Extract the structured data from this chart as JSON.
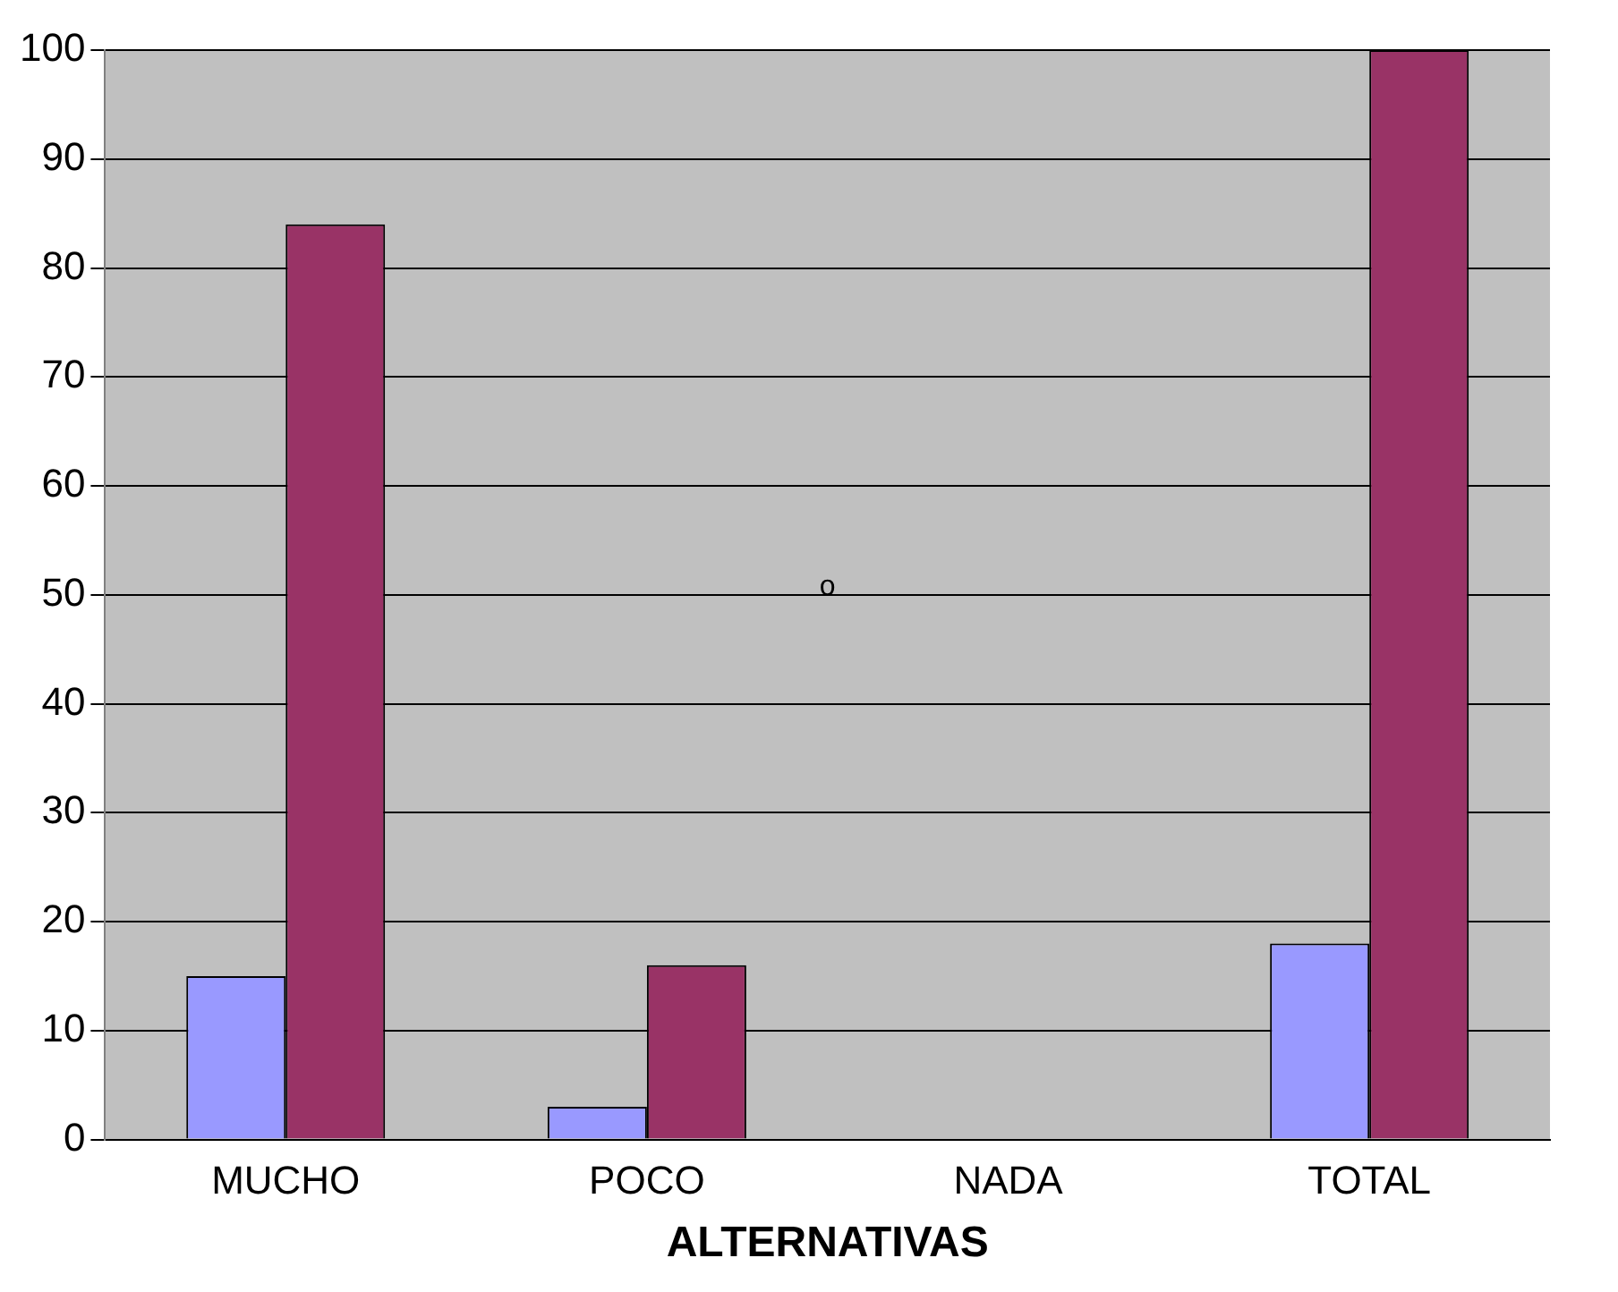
{
  "chart_data": {
    "type": "bar",
    "xlabel": "ALTERNATIVAS",
    "categories": [
      "MUCHO",
      "POCO",
      "NADA",
      "TOTAL"
    ],
    "series": [
      {
        "color": "#9999ff",
        "values": [
          15,
          3,
          0,
          18
        ]
      },
      {
        "color": "#993366",
        "values": [
          84,
          16,
          0,
          100
        ]
      }
    ],
    "ylim": [
      0,
      100
    ],
    "yticks": [
      0,
      10,
      20,
      30,
      40,
      50,
      60,
      70,
      80,
      90,
      100
    ],
    "grid": "y",
    "legend": false,
    "annotations": [
      "o"
    ]
  }
}
